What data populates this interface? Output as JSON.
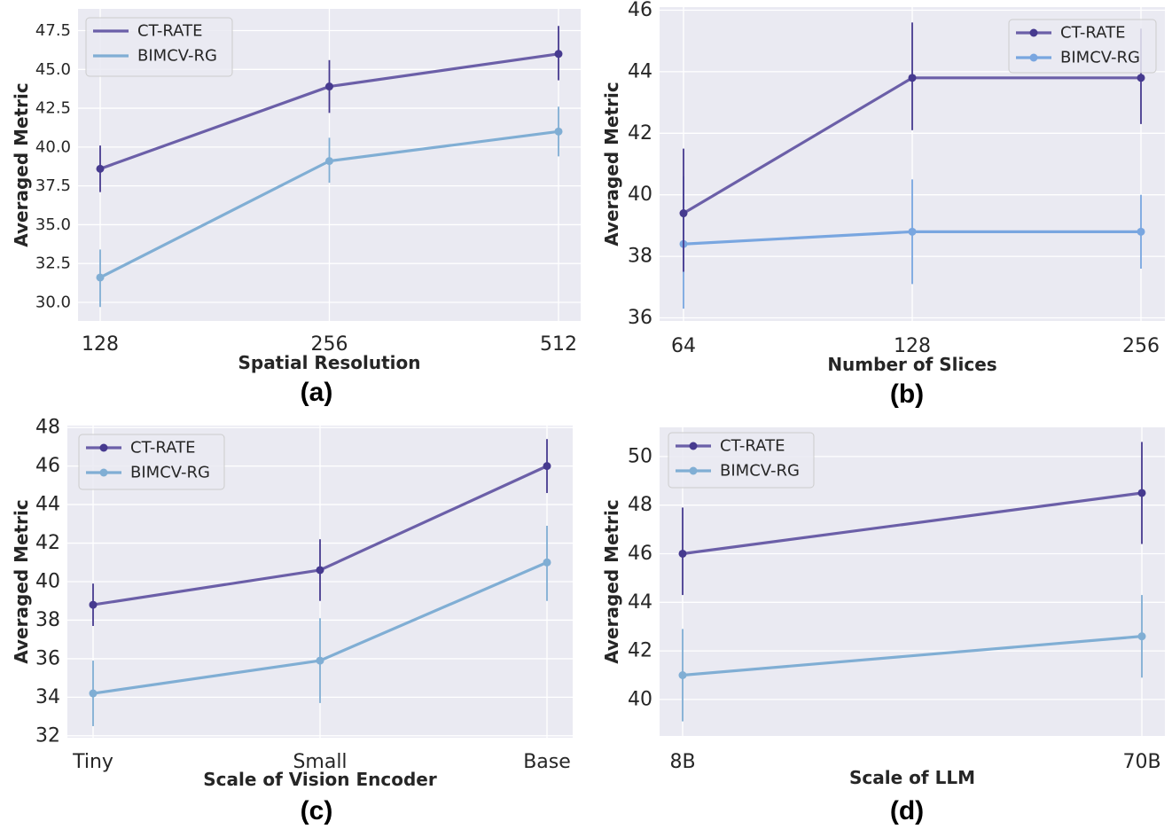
{
  "colors": {
    "ct_rate": "#6b5fa8",
    "ct_rate_marker": "#463a8f",
    "bimcv_a": "#80aed4",
    "bimcv_b": "#79a6e0",
    "bimcv_c": "#80aed4",
    "bimcv_d": "#80aed4",
    "plot_bg": "#eaeaf2",
    "grid": "#ffffff",
    "text": "#262626"
  },
  "chart_data": [
    {
      "id": "a",
      "type": "line",
      "panel_label": "(a)",
      "xlabel": "Spatial Resolution",
      "ylabel": "Averaged Metric",
      "categories": [
        "128",
        "256",
        "512"
      ],
      "ylim": [
        28.8,
        48.9
      ],
      "yticks": [
        30.0,
        32.5,
        35.0,
        37.5,
        40.0,
        42.5,
        45.0,
        47.5
      ],
      "ytick_labels": [
        "30.0",
        "32.5",
        "35.0",
        "37.5",
        "40.0",
        "42.5",
        "45.0",
        "47.5"
      ],
      "legend_position": "upper-left",
      "legend_marker": false,
      "series": [
        {
          "name": "CT-RATE",
          "values": [
            38.6,
            43.9,
            46.0
          ],
          "err_low": [
            37.1,
            42.2,
            44.3
          ],
          "err_high": [
            40.1,
            45.6,
            47.8
          ]
        },
        {
          "name": "BIMCV-RG",
          "values": [
            31.6,
            39.1,
            41.0
          ],
          "err_low": [
            29.7,
            37.7,
            39.4
          ],
          "err_high": [
            33.4,
            40.6,
            42.6
          ]
        }
      ]
    },
    {
      "id": "b",
      "type": "line",
      "panel_label": "(b)",
      "xlabel": "Number of Slices",
      "ylabel": "Averaged Metric",
      "categories": [
        "64",
        "128",
        "256"
      ],
      "ylim": [
        35.9,
        46.1
      ],
      "yticks": [
        36,
        38,
        40,
        42,
        44,
        46
      ],
      "ytick_labels": [
        "36",
        "38",
        "40",
        "42",
        "44",
        "46"
      ],
      "legend_position": "upper-right",
      "legend_marker": true,
      "series": [
        {
          "name": "CT-RATE",
          "values": [
            39.4,
            43.8,
            43.8
          ],
          "err_low": [
            37.5,
            42.1,
            42.3
          ],
          "err_high": [
            41.5,
            45.6,
            45.4
          ]
        },
        {
          "name": "BIMCV-RG",
          "values": [
            38.4,
            38.8,
            38.8
          ],
          "err_low": [
            36.3,
            37.1,
            37.6
          ],
          "err_high": [
            40.6,
            40.5,
            40.0
          ]
        }
      ]
    },
    {
      "id": "c",
      "type": "line",
      "panel_label": "(c)",
      "xlabel": "Scale of Vision Encoder",
      "ylabel": "Averaged Metric",
      "categories": [
        "Tiny",
        "Small",
        "Base"
      ],
      "ylim": [
        31.9,
        48.1
      ],
      "yticks": [
        32,
        34,
        36,
        38,
        40,
        42,
        44,
        46,
        48
      ],
      "ytick_labels": [
        "32",
        "34",
        "36",
        "38",
        "40",
        "42",
        "44",
        "46",
        "48"
      ],
      "legend_position": "upper-left",
      "legend_marker": true,
      "series": [
        {
          "name": "CT-RATE",
          "values": [
            38.8,
            40.6,
            46.0
          ],
          "err_low": [
            37.7,
            39.0,
            44.6
          ],
          "err_high": [
            39.9,
            42.2,
            47.4
          ]
        },
        {
          "name": "BIMCV-RG",
          "values": [
            34.2,
            35.9,
            41.0
          ],
          "err_low": [
            32.5,
            33.7,
            39.0
          ],
          "err_high": [
            35.9,
            38.1,
            42.9
          ]
        }
      ]
    },
    {
      "id": "d",
      "type": "line",
      "panel_label": "(d)",
      "xlabel": "Scale of LLM",
      "ylabel": "Averaged Metric",
      "categories": [
        "8B",
        "70B"
      ],
      "ylim": [
        38.5,
        51.2
      ],
      "yticks": [
        40,
        42,
        44,
        46,
        48,
        50
      ],
      "ytick_labels": [
        "40",
        "42",
        "44",
        "46",
        "48",
        "50"
      ],
      "legend_position": "upper-left",
      "legend_marker": true,
      "series": [
        {
          "name": "CT-RATE",
          "values": [
            46.0,
            48.5
          ],
          "err_low": [
            44.3,
            46.4
          ],
          "err_high": [
            47.9,
            50.6
          ]
        },
        {
          "name": "BIMCV-RG",
          "values": [
            41.0,
            42.6
          ],
          "err_low": [
            39.1,
            40.9
          ],
          "err_high": [
            42.9,
            44.3
          ]
        }
      ]
    }
  ]
}
